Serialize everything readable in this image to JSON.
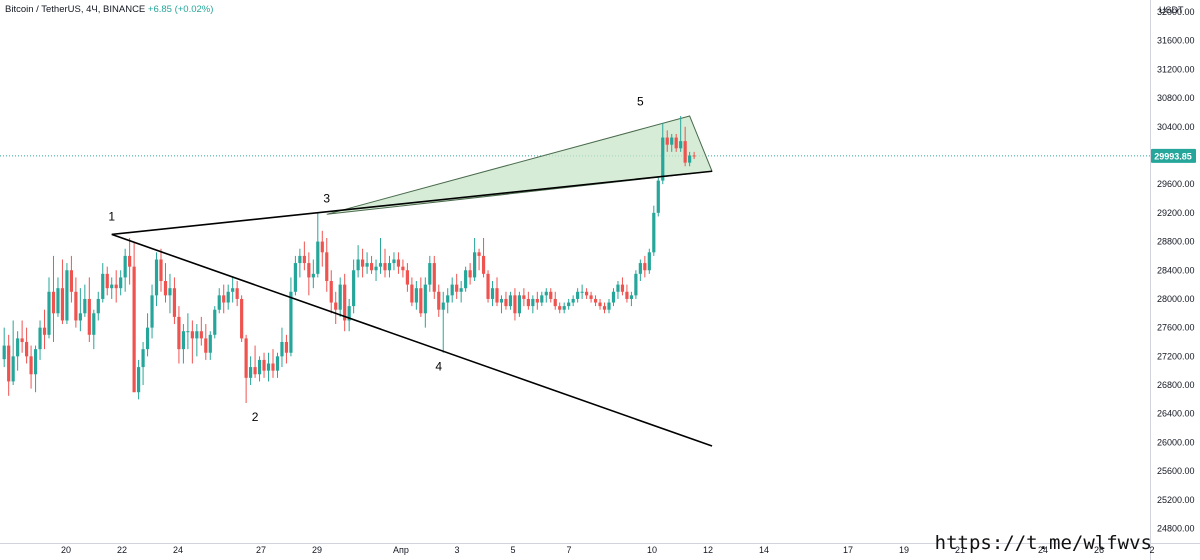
{
  "header": {
    "symbol": "Bitcoin / TetherUS, 4Ч, BINANCE",
    "change": "+6.85 (+0.02%)"
  },
  "colors": {
    "up": "#26a69a",
    "down": "#ef5350",
    "wedge_fill": "#c8e6c9",
    "line": "#000000",
    "price_tag": "#26a69a"
  },
  "watermark": "https://t.me/wlfwvs",
  "chart_data": {
    "type": "candlestick",
    "currency": "USDT",
    "ylim": [
      24600,
      32400
    ],
    "y_ticks": [
      "32000.00",
      "31600.00",
      "31200.00",
      "30800.00",
      "30400.00",
      "30000.00",
      "29600.00",
      "29200.00",
      "28800.00",
      "28400.00",
      "28000.00",
      "27600.00",
      "27200.00",
      "26800.00",
      "26400.00",
      "26000.00",
      "25600.00",
      "25200.00",
      "24800.00"
    ],
    "x_ticks": [
      "20",
      "22",
      "24",
      "27",
      "29",
      "Апр",
      "3",
      "5",
      "7",
      "10",
      "12",
      "14",
      "17",
      "19",
      "21",
      "24",
      "26",
      "2"
    ],
    "current_price": "29993.85",
    "wave_labels": [
      "1",
      "2",
      "3",
      "4",
      "5"
    ],
    "pivots": [
      {
        "label": "1",
        "date": "2023-03-22 16:00",
        "price": 28900
      },
      {
        "label": "2",
        "date": "2023-03-28 00:00",
        "price": 26550
      },
      {
        "label": "3",
        "date": "2023-03-30 16:00",
        "price": 29180
      },
      {
        "label": "4",
        "date": "2023-04-03 20:00",
        "price": 27250
      },
      {
        "label": "5",
        "date": "2023-04-11 08:00",
        "price": 30500
      }
    ],
    "trendlines": [
      {
        "from": {
          "date": "2023-03-22 16:00",
          "price": 28900
        },
        "to": {
          "date": "2023-04-14 00:00",
          "price": 25950
        }
      },
      {
        "from": {
          "date": "2023-03-22 16:00",
          "price": 28900
        },
        "to": {
          "date": "2023-04-14 00:00",
          "price": 29780
        }
      }
    ],
    "wedge": [
      {
        "date": "2023-03-30 16:00",
        "price": 29180
      },
      {
        "date": "2023-04-13 04:00",
        "price": 30550
      },
      {
        "date": "2023-04-14 00:00",
        "price": 29780
      }
    ],
    "candles": [
      [
        27160,
        27600,
        27050,
        27350
      ],
      [
        27350,
        27500,
        26650,
        26850
      ],
      [
        26850,
        27700,
        26800,
        27200
      ],
      [
        27200,
        27550,
        27000,
        27450
      ],
      [
        27450,
        27700,
        27250,
        27400
      ],
      [
        27400,
        27600,
        27100,
        27200
      ],
      [
        27200,
        27350,
        26750,
        26950
      ],
      [
        26950,
        27350,
        26700,
        27300
      ],
      [
        27300,
        27700,
        27150,
        27600
      ],
      [
        27600,
        27850,
        27300,
        27500
      ],
      [
        27500,
        28300,
        27450,
        28100
      ],
      [
        28100,
        28600,
        27400,
        27800
      ],
      [
        27800,
        28300,
        27750,
        28150
      ],
      [
        28150,
        28550,
        27650,
        27700
      ],
      [
        27700,
        28500,
        27650,
        28400
      ],
      [
        28400,
        28600,
        27950,
        28100
      ],
      [
        28100,
        28300,
        27600,
        27700
      ],
      [
        27700,
        28150,
        27550,
        27800
      ],
      [
        27800,
        28200,
        27750,
        28000
      ],
      [
        28000,
        28300,
        27400,
        27500
      ],
      [
        27500,
        27850,
        27300,
        27800
      ],
      [
        27800,
        28100,
        27700,
        28000
      ],
      [
        28000,
        28500,
        27950,
        28350
      ],
      [
        28350,
        28450,
        28050,
        28150
      ],
      [
        28150,
        28300,
        28000,
        28200
      ],
      [
        28200,
        28400,
        27950,
        28150
      ],
      [
        28150,
        28400,
        28050,
        28300
      ],
      [
        28300,
        28700,
        28100,
        28600
      ],
      [
        28600,
        28850,
        28200,
        28450
      ],
      [
        28450,
        28800,
        26700,
        26700
      ],
      [
        26700,
        27150,
        26600,
        27050
      ],
      [
        27050,
        27400,
        26800,
        27300
      ],
      [
        27300,
        27800,
        27200,
        27600
      ],
      [
        27600,
        28200,
        27450,
        28050
      ],
      [
        28050,
        28650,
        27900,
        28550
      ],
      [
        28550,
        28700,
        28100,
        28250
      ],
      [
        28250,
        28500,
        27950,
        28050
      ],
      [
        28050,
        28350,
        27800,
        28150
      ],
      [
        28150,
        28300,
        27650,
        27750
      ],
      [
        27750,
        27900,
        27100,
        27300
      ],
      [
        27300,
        27650,
        27100,
        27550
      ],
      [
        27550,
        27800,
        27300,
        27550
      ],
      [
        27550,
        27700,
        27100,
        27450
      ],
      [
        27450,
        27650,
        27200,
        27550
      ],
      [
        27550,
        27750,
        27350,
        27450
      ],
      [
        27450,
        27650,
        27150,
        27250
      ],
      [
        27250,
        27550,
        27150,
        27500
      ],
      [
        27500,
        27900,
        27450,
        27850
      ],
      [
        27850,
        28150,
        27800,
        28050
      ],
      [
        28050,
        28200,
        27800,
        27950
      ],
      [
        27950,
        28200,
        27850,
        28100
      ],
      [
        28100,
        28300,
        27950,
        28150
      ],
      [
        28150,
        28250,
        27900,
        28000
      ],
      [
        28000,
        28050,
        27400,
        27450
      ],
      [
        27450,
        27500,
        26550,
        26900
      ],
      [
        26900,
        27200,
        26800,
        27050
      ],
      [
        27050,
        27350,
        26900,
        26950
      ],
      [
        26950,
        27200,
        26850,
        27150
      ],
      [
        27150,
        27250,
        26900,
        27000
      ],
      [
        27000,
        27250,
        26850,
        27100
      ],
      [
        27100,
        27300,
        26900,
        27000
      ],
      [
        27000,
        27250,
        26900,
        27200
      ],
      [
        27200,
        27600,
        27050,
        27400
      ],
      [
        27400,
        27500,
        27100,
        27250
      ],
      [
        27250,
        28300,
        27200,
        28100
      ],
      [
        28100,
        28600,
        28050,
        28500
      ],
      [
        28500,
        28700,
        28300,
        28600
      ],
      [
        28600,
        28800,
        28400,
        28500
      ],
      [
        28500,
        28650,
        28050,
        28300
      ],
      [
        28300,
        28550,
        28150,
        28350
      ],
      [
        28350,
        29200,
        28300,
        28800
      ],
      [
        28800,
        28950,
        28450,
        28650
      ],
      [
        28650,
        28850,
        28100,
        28250
      ],
      [
        28250,
        28400,
        27800,
        27950
      ],
      [
        27950,
        28100,
        27650,
        27850
      ],
      [
        27850,
        28300,
        27750,
        28200
      ],
      [
        28200,
        28350,
        27550,
        27700
      ],
      [
        27700,
        28000,
        27550,
        27900
      ],
      [
        27900,
        28550,
        27800,
        28400
      ],
      [
        28400,
        28750,
        28300,
        28550
      ],
      [
        28550,
        28700,
        28300,
        28450
      ],
      [
        28450,
        28650,
        28350,
        28500
      ],
      [
        28500,
        28600,
        28350,
        28400
      ],
      [
        28400,
        28550,
        28250,
        28450
      ],
      [
        28450,
        28850,
        28350,
        28500
      ],
      [
        28500,
        28700,
        28300,
        28400
      ],
      [
        28400,
        28600,
        28300,
        28500
      ],
      [
        28500,
        28650,
        28400,
        28550
      ],
      [
        28550,
        28650,
        28350,
        28450
      ],
      [
        28450,
        28550,
        28300,
        28400
      ],
      [
        28400,
        28500,
        28100,
        28200
      ],
      [
        28200,
        28300,
        27900,
        27950
      ],
      [
        27950,
        28250,
        27850,
        28150
      ],
      [
        28150,
        28300,
        27750,
        27800
      ],
      [
        27800,
        28300,
        27600,
        28200
      ],
      [
        28200,
        28600,
        28100,
        28500
      ],
      [
        28500,
        28600,
        28000,
        28100
      ],
      [
        28100,
        28200,
        27750,
        27850
      ],
      [
        27850,
        28100,
        27250,
        27950
      ],
      [
        27950,
        28150,
        27800,
        28050
      ],
      [
        28050,
        28300,
        27950,
        28200
      ],
      [
        28200,
        28350,
        28000,
        28100
      ],
      [
        28100,
        28250,
        27950,
        28150
      ],
      [
        28150,
        28450,
        28100,
        28400
      ],
      [
        28400,
        28500,
        28200,
        28300
      ],
      [
        28300,
        28850,
        28250,
        28650
      ],
      [
        28650,
        28700,
        28400,
        28600
      ],
      [
        28600,
        28850,
        28300,
        28350
      ],
      [
        28350,
        28400,
        27950,
        28000
      ],
      [
        28000,
        28250,
        27900,
        28150
      ],
      [
        28150,
        28300,
        27900,
        27950
      ],
      [
        27950,
        28050,
        27800,
        28000
      ],
      [
        28000,
        28100,
        27850,
        27900
      ],
      [
        27900,
        28100,
        27850,
        28050
      ],
      [
        28050,
        28150,
        27700,
        27800
      ],
      [
        27800,
        28100,
        27750,
        28050
      ],
      [
        28050,
        28150,
        27900,
        28000
      ],
      [
        28000,
        28100,
        27850,
        27900
      ],
      [
        27900,
        28050,
        27800,
        28000
      ],
      [
        28000,
        28100,
        27850,
        27950
      ],
      [
        27950,
        28100,
        27900,
        28050
      ],
      [
        28050,
        28150,
        27950,
        28100
      ],
      [
        28100,
        28150,
        27950,
        28000
      ],
      [
        28000,
        28100,
        27850,
        27900
      ],
      [
        27900,
        27950,
        27800,
        27850
      ],
      [
        27850,
        27950,
        27800,
        27900
      ],
      [
        27900,
        28000,
        27850,
        27950
      ],
      [
        27950,
        28050,
        27900,
        28000
      ],
      [
        28000,
        28150,
        27950,
        28100
      ],
      [
        28100,
        28200,
        28000,
        28100
      ],
      [
        28100,
        28150,
        28000,
        28050
      ],
      [
        28050,
        28100,
        27950,
        28000
      ],
      [
        28000,
        28050,
        27900,
        27950
      ],
      [
        27950,
        28000,
        27850,
        27900
      ],
      [
        27900,
        27950,
        27800,
        27850
      ],
      [
        27850,
        28000,
        27800,
        27950
      ],
      [
        27950,
        28150,
        27900,
        28100
      ],
      [
        28100,
        28250,
        28000,
        28200
      ],
      [
        28200,
        28300,
        28050,
        28100
      ],
      [
        28100,
        28200,
        27950,
        28000
      ],
      [
        28000,
        28100,
        27900,
        28050
      ],
      [
        28050,
        28400,
        28000,
        28350
      ],
      [
        28350,
        28550,
        28250,
        28500
      ],
      [
        28500,
        28600,
        28300,
        28400
      ],
      [
        28400,
        28700,
        28350,
        28650
      ],
      [
        28650,
        29300,
        28600,
        29200
      ],
      [
        29200,
        29700,
        29150,
        29650
      ],
      [
        29650,
        30450,
        29600,
        30250
      ],
      [
        30250,
        30350,
        30050,
        30150
      ],
      [
        30150,
        30300,
        30050,
        30250
      ],
      [
        30250,
        30300,
        30050,
        30100
      ],
      [
        30100,
        30550,
        30050,
        30200
      ],
      [
        30200,
        30400,
        29850,
        29900
      ],
      [
        29900,
        30050,
        29850,
        30000
      ],
      [
        30000,
        30050,
        29950,
        29994
      ]
    ]
  }
}
